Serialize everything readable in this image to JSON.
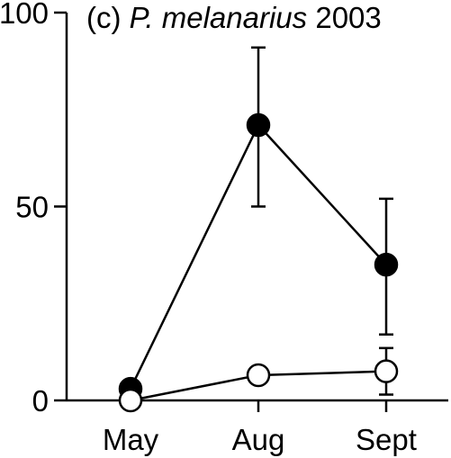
{
  "chart_data": {
    "type": "line",
    "title_prefix": "(c) ",
    "title_species": "P. melanarius",
    "title_year": " 2003",
    "xlabel": "",
    "ylabel": "",
    "categories": [
      "May",
      "Aug",
      "Sept"
    ],
    "yticks": [
      "0",
      "50",
      "100"
    ],
    "ylim": [
      0,
      100
    ],
    "grid": false,
    "legend": "none",
    "series": [
      {
        "marker": "filled-circle",
        "values": [
          3,
          71,
          35
        ],
        "error_low": [
          0,
          50,
          17
        ],
        "error_high": [
          3,
          91,
          52
        ]
      },
      {
        "marker": "open-circle",
        "values": [
          0,
          6.5,
          7.5
        ],
        "error_low": [
          0,
          6.5,
          1.5
        ],
        "error_high": [
          0,
          6.5,
          13.5
        ]
      }
    ],
    "colors": {
      "line": "#000000",
      "filled_marker": "#000000",
      "open_marker": "#ffffff"
    }
  }
}
